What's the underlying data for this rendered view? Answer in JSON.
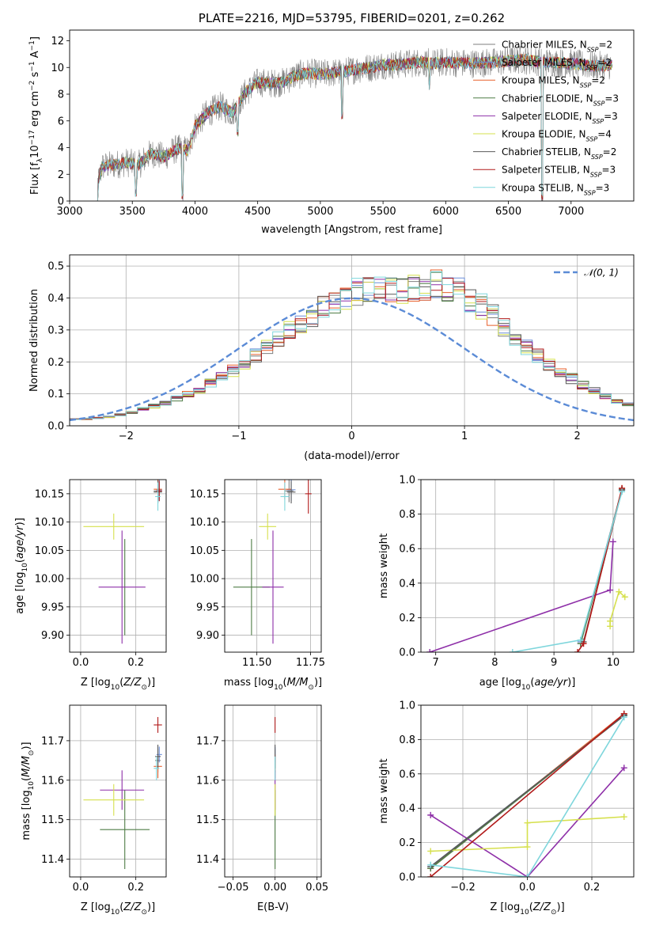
{
  "figure": {
    "title": "PLATE=2216, MJD=53795, FIBERID=0201, z=0.262"
  },
  "colors": {
    "chabrier_miles": "#7f7f7f",
    "salpeter_miles": "#6c8ed8",
    "kroupa_miles": "#e8602c",
    "chabrier_elodie": "#4f7d46",
    "salpeter_elodie": "#8e2fa8",
    "kroupa_elodie": "#d6e04e",
    "chabrier_stelib": "#595959",
    "salpeter_stelib": "#b11a1a",
    "kroupa_stelib": "#7fd6dc",
    "normal_curve": "#5b8bd6",
    "grid": "#b0b0b0"
  },
  "chart_data": [
    {
      "id": "spectrum",
      "type": "line",
      "title": "PLATE=2216, MJD=53795, FIBERID=0201, z=0.262",
      "xlabel": "wavelength [Angstrom, rest frame]",
      "ylabel": "Flux [f_λ 10^-17 erg cm^-2 s^-1 A^-1]",
      "xlim": [
        3000,
        7500
      ],
      "ylim": [
        0,
        12.8
      ],
      "xticks": [
        3000,
        3500,
        4000,
        4500,
        5000,
        5500,
        6000,
        6500,
        7000
      ],
      "yticks": [
        0,
        2,
        4,
        6,
        8,
        10,
        12
      ],
      "legend_position": "upper right",
      "continuum": {
        "x": [
          3210,
          3260,
          3350,
          3450,
          3550,
          3650,
          3750,
          3850,
          3950,
          4000,
          4100,
          4200,
          4300,
          4400,
          4500,
          4600,
          4700,
          4800,
          4900,
          5000,
          5100,
          5200,
          5300,
          5400,
          5500,
          5600,
          5700,
          5800,
          5900,
          6000,
          6200,
          6400,
          6600,
          6800,
          7000,
          7200,
          7330
        ],
        "y": [
          0.8,
          2.6,
          2.7,
          2.9,
          2.7,
          3.6,
          3.3,
          3.9,
          3.8,
          5.6,
          6.6,
          7.1,
          6.6,
          8.1,
          8.9,
          8.8,
          8.9,
          9.4,
          9.6,
          9.5,
          9.6,
          9.7,
          9.9,
          10.0,
          10.2,
          10.2,
          10.3,
          10.4,
          10.3,
          10.4,
          10.3,
          10.4,
          10.6,
          10.4,
          10.3,
          10.1,
          10.2
        ]
      },
      "dips": [
        {
          "x": 3530,
          "y": 0.3
        },
        {
          "x": 3900,
          "y": 0.0
        },
        {
          "x": 4340,
          "y": 4.8
        },
        {
          "x": 5175,
          "y": 6.1
        },
        {
          "x": 5870,
          "y": 8.2
        },
        {
          "x": 6770,
          "y": 0.0
        }
      ],
      "series": [
        {
          "name": "Chabrier MILES, N_SSP=2",
          "color": "#7f7f7f"
        },
        {
          "name": "Salpeter MILES, N_SSP=2",
          "color": "#6c8ed8"
        },
        {
          "name": "Kroupa MILES, N_SSP=2",
          "color": "#e8602c"
        },
        {
          "name": "Chabrier ELODIE, N_SSP=3",
          "color": "#4f7d46"
        },
        {
          "name": "Salpeter ELODIE, N_SSP=3",
          "color": "#8e2fa8"
        },
        {
          "name": "Kroupa ELODIE, N_SSP=4",
          "color": "#d6e04e"
        },
        {
          "name": "Chabrier STELIB, N_SSP=2",
          "color": "#595959"
        },
        {
          "name": "Salpeter STELIB, N_SSP=3",
          "color": "#b11a1a"
        },
        {
          "name": "Kroupa STELIB, N_SSP=3",
          "color": "#7fd6dc"
        }
      ]
    },
    {
      "id": "residuals",
      "type": "histogram",
      "xlabel": "(data-model)/error",
      "ylabel": "Normed distribution",
      "xlim": [
        -2.5,
        2.5
      ],
      "ylim": [
        0,
        0.535
      ],
      "xticks": [
        -2,
        -1,
        0,
        1,
        2
      ],
      "yticks": [
        0.0,
        0.1,
        0.2,
        0.3,
        0.4,
        0.5
      ],
      "bin_edges_start": -2.5,
      "bin_width": 0.1,
      "mean_hist": [
        0.022,
        0.022,
        0.025,
        0.028,
        0.035,
        0.042,
        0.052,
        0.062,
        0.072,
        0.085,
        0.098,
        0.115,
        0.132,
        0.152,
        0.172,
        0.195,
        0.22,
        0.245,
        0.268,
        0.295,
        0.32,
        0.345,
        0.37,
        0.39,
        0.405,
        0.42,
        0.43,
        0.44,
        0.43,
        0.42,
        0.425,
        0.43,
        0.44,
        0.435,
        0.42,
        0.4,
        0.375,
        0.345,
        0.31,
        0.28,
        0.25,
        0.22,
        0.195,
        0.17,
        0.148,
        0.128,
        0.108,
        0.092,
        0.078,
        0.065,
        0.055,
        0.047,
        0.04,
        0.034,
        0.03
      ],
      "curve": {
        "name": "N(0,1)",
        "legend_text": "𝒩(0, 1)",
        "style": "dashed"
      },
      "legend_position": "upper right"
    },
    {
      "id": "age_vs_Z",
      "type": "errorbar",
      "xlabel": "Z [log10(Z/Z☉)]",
      "ylabel": "age [log10(age/yr)]",
      "xlim": [
        -0.04,
        0.31
      ],
      "ylim": [
        9.87,
        10.175
      ],
      "xticks": [
        0.0,
        0.2
      ],
      "xticklabels": [
        "0.0",
        "0.2"
      ],
      "yticks": [
        9.9,
        9.95,
        10.0,
        10.05,
        10.1,
        10.15
      ],
      "points": [
        {
          "series": "Chabrier MILES",
          "x": 0.28,
          "y": 10.155,
          "xerr": 0.015,
          "yerr": 0.02
        },
        {
          "series": "Salpeter MILES",
          "x": 0.285,
          "y": 10.157,
          "xerr": 0.01,
          "yerr": 0.02
        },
        {
          "series": "Kroupa MILES",
          "x": 0.28,
          "y": 10.158,
          "xerr": 0.015,
          "yerr": 0.018
        },
        {
          "series": "Chabrier ELODIE",
          "x": 0.16,
          "y": 9.985,
          "xerr": 0.0,
          "yerr": 0.085
        },
        {
          "series": "Salpeter ELODIE",
          "x": 0.15,
          "y": 9.985,
          "xerr": 0.085,
          "yerr": 0.1
        },
        {
          "series": "Kroupa ELODIE",
          "x": 0.12,
          "y": 10.092,
          "xerr": 0.11,
          "yerr": 0.023
        },
        {
          "series": "Chabrier STELIB",
          "x": 0.28,
          "y": 10.153,
          "xerr": 0.015,
          "yerr": 0.02
        },
        {
          "series": "Salpeter STELIB",
          "x": 0.285,
          "y": 10.155,
          "xerr": 0.01,
          "yerr": 0.018
        },
        {
          "series": "Kroupa STELIB",
          "x": 0.28,
          "y": 10.145,
          "xerr": 0.01,
          "yerr": 0.025
        }
      ]
    },
    {
      "id": "age_vs_mass",
      "type": "errorbar",
      "xlabel": "mass [log10(M/M☉)]",
      "xlim": [
        11.35,
        11.8
      ],
      "ylim": [
        9.87,
        10.175
      ],
      "xticks": [
        11.5,
        11.75
      ],
      "xticklabels": [
        "11.50",
        "11.75"
      ],
      "yticks": [
        9.9,
        9.95,
        10.0,
        10.05,
        10.1,
        10.15
      ],
      "points": [
        {
          "series": "Chabrier MILES",
          "x": 11.65,
          "y": 10.155,
          "xerr": 0.02,
          "yerr": 0.02
        },
        {
          "series": "Salpeter MILES",
          "x": 11.66,
          "y": 10.157,
          "xerr": 0.02,
          "yerr": 0.02
        },
        {
          "series": "Kroupa MILES",
          "x": 11.63,
          "y": 10.158,
          "xerr": 0.03,
          "yerr": 0.018
        },
        {
          "series": "Chabrier ELODIE",
          "x": 11.475,
          "y": 9.985,
          "xerr": 0.085,
          "yerr": 0.085
        },
        {
          "series": "Salpeter ELODIE",
          "x": 11.575,
          "y": 9.985,
          "xerr": 0.05,
          "yerr": 0.1
        },
        {
          "series": "Kroupa ELODIE",
          "x": 11.55,
          "y": 10.092,
          "xerr": 0.04,
          "yerr": 0.023
        },
        {
          "series": "Chabrier STELIB",
          "x": 11.66,
          "y": 10.153,
          "xerr": 0.02,
          "yerr": 0.02
        },
        {
          "series": "Salpeter STELIB",
          "x": 11.74,
          "y": 10.15,
          "xerr": 0.015,
          "yerr": 0.035
        },
        {
          "series": "Kroupa STELIB",
          "x": 11.63,
          "y": 10.145,
          "xerr": 0.02,
          "yerr": 0.025
        }
      ]
    },
    {
      "id": "weight_vs_age",
      "type": "line",
      "xlabel": "age [log10(age/yr)]",
      "ylabel": "mass weight",
      "xlim": [
        6.75,
        10.35
      ],
      "ylim": [
        0,
        1.0
      ],
      "xticks": [
        7,
        8,
        9,
        10
      ],
      "yticks": [
        0.0,
        0.2,
        0.4,
        0.6,
        0.8,
        1.0
      ],
      "lines": [
        {
          "series": "Chabrier MILES",
          "points": [
            [
              9.45,
              0.05
            ],
            [
              10.15,
              0.945
            ]
          ]
        },
        {
          "series": "Salpeter MILES",
          "points": [
            [
              9.45,
              0.06
            ],
            [
              10.15,
              0.94
            ]
          ]
        },
        {
          "series": "Kroupa MILES",
          "points": [
            [
              9.5,
              0.05
            ],
            [
              10.15,
              0.95
            ]
          ]
        },
        {
          "series": "Chabrier ELODIE",
          "points": [
            [
              9.45,
              0.05
            ],
            [
              10.15,
              0.94
            ]
          ]
        },
        {
          "series": "Salpeter ELODIE",
          "points": [
            [
              6.9,
              0.0
            ],
            [
              9.95,
              0.36
            ],
            [
              10.0,
              0.64
            ]
          ]
        },
        {
          "series": "Kroupa ELODIE",
          "points": [
            [
              9.95,
              0.15
            ],
            [
              9.95,
              0.18
            ],
            [
              10.1,
              0.35
            ],
            [
              10.2,
              0.32
            ]
          ]
        },
        {
          "series": "Chabrier STELIB",
          "points": [
            [
              9.5,
              0.06
            ],
            [
              10.15,
              0.94
            ]
          ]
        },
        {
          "series": "Salpeter STELIB",
          "points": [
            [
              9.4,
              0.0
            ],
            [
              9.5,
              0.05
            ],
            [
              10.15,
              0.95
            ]
          ]
        },
        {
          "series": "Kroupa STELIB",
          "points": [
            [
              8.3,
              0.0
            ],
            [
              9.45,
              0.07
            ],
            [
              10.15,
              0.93
            ]
          ]
        }
      ]
    },
    {
      "id": "mass_vs_Z",
      "type": "errorbar",
      "xlabel": "Z [log10(Z/Z☉)]",
      "ylabel": "mass [log10(M/M☉)]",
      "xlim": [
        -0.04,
        0.31
      ],
      "ylim": [
        11.355,
        11.79
      ],
      "xticks": [
        0.0,
        0.2
      ],
      "xticklabels": [
        "0.0",
        "0.2"
      ],
      "yticks": [
        11.4,
        11.5,
        11.6,
        11.7
      ],
      "points": [
        {
          "series": "Chabrier MILES",
          "x": 0.28,
          "y": 11.65,
          "xerr": 0.01,
          "yerr": 0.03
        },
        {
          "series": "Salpeter MILES",
          "x": 0.285,
          "y": 11.665,
          "xerr": 0.01,
          "yerr": 0.02
        },
        {
          "series": "Kroupa MILES",
          "x": 0.28,
          "y": 11.635,
          "xerr": 0.015,
          "yerr": 0.03
        },
        {
          "series": "Chabrier ELODIE",
          "x": 0.16,
          "y": 11.475,
          "xerr": 0.09,
          "yerr": 0.1
        },
        {
          "series": "Salpeter ELODIE",
          "x": 0.15,
          "y": 11.575,
          "xerr": 0.08,
          "yerr": 0.05
        },
        {
          "series": "Kroupa ELODIE",
          "x": 0.12,
          "y": 11.55,
          "xerr": 0.11,
          "yerr": 0.04
        },
        {
          "series": "Chabrier STELIB",
          "x": 0.28,
          "y": 11.66,
          "xerr": 0.01,
          "yerr": 0.03
        },
        {
          "series": "Salpeter STELIB",
          "x": 0.28,
          "y": 11.74,
          "xerr": 0.015,
          "yerr": 0.02
        },
        {
          "series": "Kroupa STELIB",
          "x": 0.275,
          "y": 11.63,
          "xerr": 0.01,
          "yerr": 0.03
        }
      ]
    },
    {
      "id": "mass_vs_ebv",
      "type": "errorbar",
      "xlabel": "E(B-V)",
      "xlim": [
        -0.06,
        0.055
      ],
      "ylim": [
        11.355,
        11.79
      ],
      "xticks": [
        -0.05,
        0.0,
        0.05
      ],
      "xticklabels": [
        "−0.05",
        "0.00",
        "0.05"
      ],
      "yticks": [
        11.4,
        11.5,
        11.6,
        11.7
      ],
      "points": [
        {
          "series": "Chabrier MILES",
          "x": 0.0,
          "y": 11.65,
          "xerr": 0.0,
          "yerr": 0.03
        },
        {
          "series": "Salpeter MILES",
          "x": 0.0,
          "y": 11.665,
          "xerr": 0.0,
          "yerr": 0.02
        },
        {
          "series": "Kroupa MILES",
          "x": 0.0,
          "y": 11.635,
          "xerr": 0.0,
          "yerr": 0.03
        },
        {
          "series": "Chabrier ELODIE",
          "x": 0.0,
          "y": 11.475,
          "xerr": 0.0,
          "yerr": 0.1
        },
        {
          "series": "Salpeter ELODIE",
          "x": 0.0,
          "y": 11.575,
          "xerr": 0.0,
          "yerr": 0.05
        },
        {
          "series": "Kroupa ELODIE",
          "x": 0.0,
          "y": 11.55,
          "xerr": 0.0,
          "yerr": 0.04
        },
        {
          "series": "Chabrier STELIB",
          "x": 0.0,
          "y": 11.66,
          "xerr": 0.0,
          "yerr": 0.03
        },
        {
          "series": "Salpeter STELIB",
          "x": 0.0,
          "y": 11.74,
          "xerr": 0.0,
          "yerr": 0.02
        },
        {
          "series": "Kroupa STELIB",
          "x": 0.0,
          "y": 11.63,
          "xerr": 0.0,
          "yerr": 0.03
        }
      ]
    },
    {
      "id": "weight_vs_Z",
      "type": "line",
      "xlabel": "Z [log10(Z/Z☉)]",
      "ylabel": "mass weight",
      "xlim": [
        -0.33,
        0.33
      ],
      "ylim": [
        0,
        1.0
      ],
      "xticks": [
        -0.2,
        0.0,
        0.2
      ],
      "xticklabels": [
        "−0.2",
        "0.0",
        "0.2"
      ],
      "yticks": [
        0.0,
        0.2,
        0.4,
        0.6,
        0.8,
        1.0
      ],
      "lines": [
        {
          "series": "Chabrier MILES",
          "points": [
            [
              -0.3,
              0.05
            ],
            [
              0.3,
              0.945
            ]
          ]
        },
        {
          "series": "Salpeter MILES",
          "points": [
            [
              -0.3,
              0.06
            ],
            [
              0.3,
              0.94
            ]
          ]
        },
        {
          "series": "Kroupa MILES",
          "points": [
            [
              -0.3,
              0.05
            ],
            [
              0.3,
              0.95
            ]
          ]
        },
        {
          "series": "Chabrier ELODIE",
          "points": [
            [
              -0.3,
              0.05
            ],
            [
              0.3,
              0.94
            ]
          ]
        },
        {
          "series": "Salpeter ELODIE",
          "points": [
            [
              -0.3,
              0.36
            ],
            [
              0.0,
              0.0
            ],
            [
              0.3,
              0.635
            ]
          ]
        },
        {
          "series": "Kroupa ELODIE",
          "points": [
            [
              -0.3,
              0.15
            ],
            [
              0.0,
              0.175
            ],
            [
              0.0,
              0.315
            ],
            [
              0.3,
              0.35
            ]
          ]
        },
        {
          "series": "Chabrier STELIB",
          "points": [
            [
              -0.3,
              0.06
            ],
            [
              0.3,
              0.94
            ]
          ]
        },
        {
          "series": "Salpeter STELIB",
          "points": [
            [
              -0.3,
              0.0
            ],
            [
              0.3,
              0.95
            ]
          ]
        },
        {
          "series": "Kroupa STELIB",
          "points": [
            [
              -0.3,
              0.07
            ],
            [
              0.0,
              0.0
            ],
            [
              0.3,
              0.93
            ]
          ]
        }
      ]
    }
  ]
}
